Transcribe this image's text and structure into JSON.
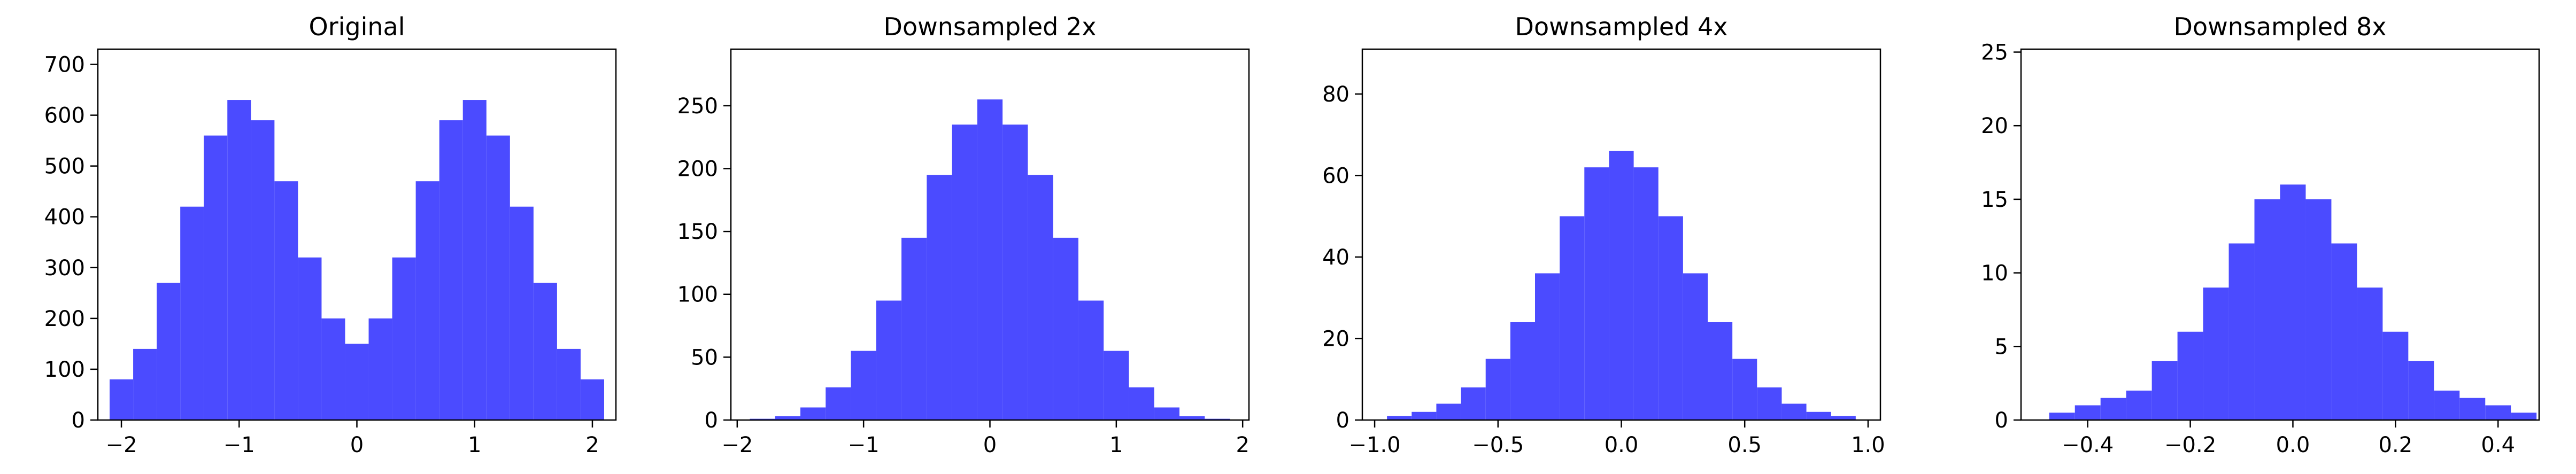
{
  "figure": {
    "background": "#ffffff",
    "bar_color": "#4b4bff"
  },
  "chart_data": [
    {
      "type": "bar",
      "title": "Original",
      "xlabel": "",
      "ylabel": "",
      "xlim": [
        -2.2,
        2.2
      ],
      "ylim": [
        0,
        730
      ],
      "xticks": [
        -2,
        -1,
        0,
        1,
        2
      ],
      "xtick_labels": [
        "−2",
        "−1",
        "0",
        "1",
        "2"
      ],
      "yticks": [
        0,
        100,
        200,
        300,
        400,
        500,
        600,
        700
      ],
      "ytick_labels": [
        "0",
        "100",
        "200",
        "300",
        "400",
        "500",
        "600",
        "700"
      ],
      "grid": false,
      "series": [
        {
          "x": [
            -2.0,
            -1.8,
            -1.6,
            -1.4,
            -1.2,
            -1.0,
            -0.8,
            -0.6,
            -0.4,
            -0.2,
            0.0,
            0.2,
            0.4,
            0.6,
            0.8,
            1.0,
            1.2,
            1.4,
            1.6,
            1.8,
            2.0
          ],
          "values": [
            80,
            140,
            270,
            420,
            560,
            630,
            590,
            470,
            320,
            200,
            150,
            200,
            320,
            470,
            590,
            630,
            560,
            420,
            270,
            140,
            80
          ]
        }
      ]
    },
    {
      "type": "bar",
      "title": "Downsampled 2x",
      "xlabel": "",
      "ylabel": "",
      "xlim": [
        -2.05,
        2.05
      ],
      "ylim": [
        0,
        295
      ],
      "xticks": [
        -2,
        -1,
        0,
        1,
        2
      ],
      "xtick_labels": [
        "−2",
        "−1",
        "0",
        "1",
        "2"
      ],
      "yticks": [
        0,
        50,
        100,
        150,
        200,
        250
      ],
      "ytick_labels": [
        "0",
        "50",
        "100",
        "150",
        "200",
        "250"
      ],
      "grid": false,
      "series": [
        {
          "x": [
            -1.8,
            -1.6,
            -1.4,
            -1.2,
            -1.0,
            -0.8,
            -0.6,
            -0.4,
            -0.2,
            0.0,
            0.2,
            0.4,
            0.6,
            0.8,
            1.0,
            1.2,
            1.4,
            1.6,
            1.8
          ],
          "values": [
            1,
            3,
            10,
            26,
            55,
            95,
            145,
            195,
            235,
            255,
            235,
            195,
            145,
            95,
            55,
            26,
            10,
            3,
            1
          ]
        }
      ]
    },
    {
      "type": "bar",
      "title": "Downsampled 4x",
      "xlabel": "",
      "ylabel": "",
      "xlim": [
        -1.05,
        1.05
      ],
      "ylim": [
        0,
        91
      ],
      "xticks": [
        -1.0,
        -0.5,
        0.0,
        0.5,
        1.0
      ],
      "xtick_labels": [
        "−1.0",
        "−0.5",
        "0.0",
        "0.5",
        "1.0"
      ],
      "yticks": [
        0,
        20,
        40,
        60,
        80
      ],
      "ytick_labels": [
        "0",
        "20",
        "40",
        "60",
        "80"
      ],
      "grid": false,
      "series": [
        {
          "x": [
            -0.9,
            -0.8,
            -0.7,
            -0.6,
            -0.5,
            -0.4,
            -0.3,
            -0.2,
            -0.1,
            0.0,
            0.1,
            0.2,
            0.3,
            0.4,
            0.5,
            0.6,
            0.7,
            0.8,
            0.9
          ],
          "values": [
            1,
            2,
            4,
            8,
            15,
            24,
            36,
            50,
            62,
            66,
            62,
            50,
            36,
            24,
            15,
            8,
            4,
            2,
            1
          ]
        }
      ]
    },
    {
      "type": "bar",
      "title": "Downsampled 8x",
      "xlabel": "",
      "ylabel": "",
      "xlim": [
        -0.53,
        0.48
      ],
      "ylim": [
        0,
        25.2
      ],
      "xticks": [
        -0.4,
        -0.2,
        0.0,
        0.2,
        0.4
      ],
      "xtick_labels": [
        "−0.4",
        "−0.2",
        "0.0",
        "0.2",
        "0.4"
      ],
      "yticks": [
        0,
        5,
        10,
        15,
        20,
        25
      ],
      "ytick_labels": [
        "0",
        "5",
        "10",
        "15",
        "20",
        "25"
      ],
      "grid": false,
      "series": [
        {
          "x": [
            -0.45,
            -0.4,
            -0.35,
            -0.3,
            -0.25,
            -0.2,
            -0.15,
            -0.1,
            -0.05,
            0.0,
            0.05,
            0.1,
            0.15,
            0.2,
            0.25,
            0.3,
            0.35,
            0.4,
            0.45
          ],
          "values": [
            0.5,
            1,
            1.5,
            2,
            4,
            6,
            9,
            12,
            15,
            16,
            15,
            12,
            9,
            6,
            4,
            2,
            1.5,
            1,
            0.5
          ]
        }
      ]
    }
  ]
}
